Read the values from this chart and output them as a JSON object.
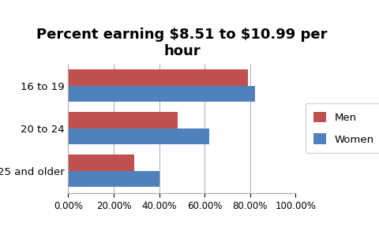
{
  "title": "Percent earning $8.51 to $10.99 per\nhour",
  "categories": [
    "25 and older",
    "20 to 24",
    "16 to 19"
  ],
  "men_values": [
    0.29,
    0.48,
    0.79
  ],
  "women_values": [
    0.4,
    0.62,
    0.82
  ],
  "men_color": "#C0504D",
  "women_color": "#4F81BD",
  "xlim": [
    0,
    1.0
  ],
  "xticks": [
    0.0,
    0.2,
    0.4,
    0.6,
    0.8,
    1.0
  ],
  "bar_height": 0.38,
  "legend_labels": [
    "Men",
    "Women"
  ],
  "title_fontsize": 13,
  "tick_fontsize": 8.5,
  "label_fontsize": 9.5,
  "background_color": "#FFFFFF"
}
